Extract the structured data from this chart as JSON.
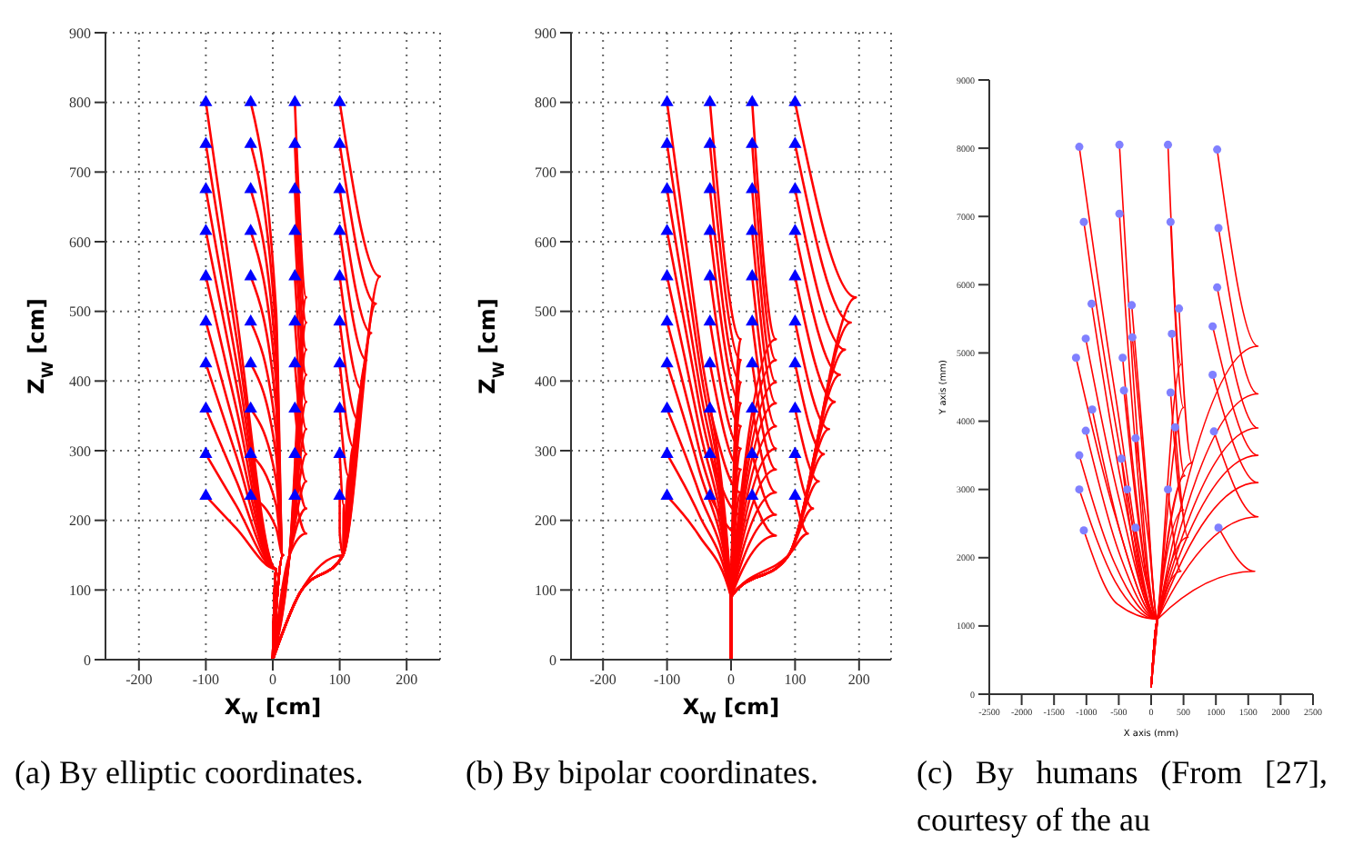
{
  "chart_data": [
    {
      "type": "line",
      "title": "(a) By elliptic coordinates.",
      "xlabel": "X$_{W}$ [cm]",
      "ylabel": "Z$_{W}$ [cm]",
      "xlim": [
        -250,
        250
      ],
      "xticks": [
        -200,
        -100,
        0,
        100,
        200
      ],
      "ylim": [
        0,
        900
      ],
      "yticks": [
        0,
        100,
        200,
        300,
        400,
        500,
        600,
        700,
        800,
        900
      ],
      "grid": true,
      "line_style": "solid",
      "marker": "none",
      "series": [
        {
          "color": "#ff0000",
          "x": [
            -100,
            -55,
            5,
            0
          ],
          "values": [
            800,
            500,
            130,
            0
          ]
        },
        {
          "color": "#ff0000",
          "x": [
            -100,
            -55,
            5,
            0
          ],
          "values": [
            740,
            467,
            130,
            0
          ]
        },
        {
          "color": "#ff0000",
          "x": [
            -100,
            -55,
            5,
            0
          ],
          "values": [
            675,
            431,
            130,
            0
          ]
        },
        {
          "color": "#ff0000",
          "x": [
            -100,
            -55,
            5,
            0
          ],
          "values": [
            615,
            398,
            130,
            0
          ]
        },
        {
          "color": "#ff0000",
          "x": [
            -100,
            -55,
            5,
            0
          ],
          "values": [
            550,
            363,
            130,
            0
          ]
        },
        {
          "color": "#ff0000",
          "x": [
            -100,
            -55,
            5,
            0
          ],
          "values": [
            485,
            327,
            130,
            0
          ]
        },
        {
          "color": "#ff0000",
          "x": [
            -100,
            -55,
            5,
            0
          ],
          "values": [
            425,
            294,
            130,
            0
          ]
        },
        {
          "color": "#ff0000",
          "x": [
            -100,
            -55,
            5,
            0
          ],
          "values": [
            360,
            258,
            130,
            0
          ]
        },
        {
          "color": "#ff0000",
          "x": [
            -100,
            -55,
            5,
            0
          ],
          "values": [
            295,
            222,
            130,
            0
          ]
        },
        {
          "color": "#ff0000",
          "x": [
            -100,
            -55,
            5,
            0
          ],
          "values": [
            235,
            189,
            130,
            0
          ]
        },
        {
          "color": "#ff0000",
          "x": [
            -33,
            5,
            15,
            0
          ],
          "values": [
            800,
            500,
            150,
            0
          ]
        },
        {
          "color": "#ff0000",
          "x": [
            -33,
            5,
            15,
            0
          ],
          "values": [
            740,
            467,
            150,
            0
          ]
        },
        {
          "color": "#ff0000",
          "x": [
            -33,
            5,
            15,
            0
          ],
          "values": [
            675,
            431,
            150,
            0
          ]
        },
        {
          "color": "#ff0000",
          "x": [
            -33,
            5,
            15,
            0
          ],
          "values": [
            615,
            398,
            150,
            0
          ]
        },
        {
          "color": "#ff0000",
          "x": [
            -33,
            5,
            15,
            0
          ],
          "values": [
            550,
            363,
            150,
            0
          ]
        },
        {
          "color": "#ff0000",
          "x": [
            -33,
            5,
            15,
            0
          ],
          "values": [
            485,
            327,
            150,
            0
          ]
        },
        {
          "color": "#ff0000",
          "x": [
            -33,
            5,
            15,
            0
          ],
          "values": [
            425,
            294,
            150,
            0
          ]
        },
        {
          "color": "#ff0000",
          "x": [
            -33,
            5,
            15,
            0
          ],
          "values": [
            360,
            258,
            150,
            0
          ]
        },
        {
          "color": "#ff0000",
          "x": [
            -33,
            5,
            15,
            0
          ],
          "values": [
            295,
            222,
            150,
            0
          ]
        },
        {
          "color": "#ff0000",
          "x": [
            -33,
            5,
            15,
            0
          ],
          "values": [
            235,
            189,
            150,
            0
          ]
        },
        {
          "color": "#ff0000",
          "x": [
            33,
            50,
            25,
            0
          ],
          "values": [
            800,
            520,
            150,
            0
          ]
        },
        {
          "color": "#ff0000",
          "x": [
            33,
            50,
            25,
            0
          ],
          "values": [
            740,
            484,
            150,
            0
          ]
        },
        {
          "color": "#ff0000",
          "x": [
            33,
            50,
            25,
            0
          ],
          "values": [
            675,
            445,
            150,
            0
          ]
        },
        {
          "color": "#ff0000",
          "x": [
            33,
            50,
            25,
            0
          ],
          "values": [
            615,
            409,
            150,
            0
          ]
        },
        {
          "color": "#ff0000",
          "x": [
            33,
            50,
            25,
            0
          ],
          "values": [
            550,
            370,
            150,
            0
          ]
        },
        {
          "color": "#ff0000",
          "x": [
            33,
            50,
            25,
            0
          ],
          "values": [
            485,
            331,
            150,
            0
          ]
        },
        {
          "color": "#ff0000",
          "x": [
            33,
            50,
            25,
            0
          ],
          "values": [
            425,
            295,
            150,
            0
          ]
        },
        {
          "color": "#ff0000",
          "x": [
            33,
            50,
            25,
            0
          ],
          "values": [
            360,
            256,
            150,
            0
          ]
        },
        {
          "color": "#ff0000",
          "x": [
            33,
            50,
            25,
            0
          ],
          "values": [
            295,
            217,
            150,
            0
          ]
        },
        {
          "color": "#ff0000",
          "x": [
            33,
            50,
            25,
            0
          ],
          "values": [
            235,
            181,
            150,
            0
          ]
        },
        {
          "color": "#ff0000",
          "x": [
            100,
            160,
            105,
            40,
            0
          ],
          "values": [
            800,
            550,
            150,
            95,
            0
          ]
        },
        {
          "color": "#ff0000",
          "x": [
            100,
            154,
            105,
            40,
            0
          ],
          "values": [
            740,
            511,
            150,
            95,
            0
          ]
        },
        {
          "color": "#ff0000",
          "x": [
            100,
            147,
            105,
            40,
            0
          ],
          "values": [
            675,
            469,
            150,
            95,
            0
          ]
        },
        {
          "color": "#ff0000",
          "x": [
            100,
            140,
            105,
            40,
            0
          ],
          "values": [
            615,
            430,
            150,
            95,
            0
          ]
        },
        {
          "color": "#ff0000",
          "x": [
            100,
            133,
            105,
            40,
            0
          ],
          "values": [
            550,
            388,
            150,
            95,
            0
          ]
        },
        {
          "color": "#ff0000",
          "x": [
            100,
            127,
            105,
            40,
            0
          ],
          "values": [
            485,
            345,
            150,
            95,
            0
          ]
        },
        {
          "color": "#ff0000",
          "x": [
            100,
            120,
            105,
            40,
            0
          ],
          "values": [
            425,
            306,
            150,
            95,
            0
          ]
        },
        {
          "color": "#ff0000",
          "x": [
            100,
            113,
            105,
            40,
            0
          ],
          "values": [
            360,
            264,
            150,
            95,
            0
          ]
        },
        {
          "color": "#ff0000",
          "x": [
            100,
            106,
            105,
            40,
            0
          ],
          "values": [
            295,
            222,
            150,
            95,
            0
          ]
        },
        {
          "color": "#ff0000",
          "x": [
            100,
            100,
            105,
            40,
            0
          ],
          "values": [
            235,
            183,
            150,
            95,
            0
          ]
        },
        {
          "type": "scatter",
          "color": "#0000ff",
          "marker": "triangle",
          "x": [
            -100,
            -100,
            -100,
            -100,
            -100,
            -100,
            -100,
            -100,
            -100,
            -100,
            -33,
            -33,
            -33,
            -33,
            -33,
            -33,
            -33,
            -33,
            -33,
            -33,
            33,
            33,
            33,
            33,
            33,
            33,
            33,
            33,
            33,
            33,
            100,
            100,
            100,
            100,
            100,
            100,
            100,
            100,
            100,
            100
          ],
          "values": [
            800,
            740,
            675,
            615,
            550,
            485,
            425,
            360,
            295,
            235,
            800,
            740,
            675,
            615,
            550,
            485,
            425,
            360,
            295,
            235,
            800,
            740,
            675,
            615,
            550,
            485,
            425,
            360,
            295,
            235,
            800,
            740,
            675,
            615,
            550,
            485,
            425,
            360,
            295,
            235
          ]
        }
      ]
    },
    {
      "type": "line",
      "title": "(b) By bipolar coordinates.",
      "xlabel": "X$_{W}$ [cm]",
      "ylabel": "Z$_{W}$ [cm]",
      "xlim": [
        -250,
        250
      ],
      "xticks": [
        -200,
        -100,
        0,
        100,
        200
      ],
      "ylim": [
        0,
        900
      ],
      "yticks": [
        0,
        100,
        200,
        300,
        400,
        500,
        600,
        700,
        800,
        900
      ],
      "grid": true,
      "line_style": "solid",
      "marker": "none",
      "series": [
        {
          "color": "#ff0000",
          "x": [
            -100,
            -50,
            0,
            0
          ],
          "values": [
            800,
            460,
            90,
            0
          ]
        },
        {
          "color": "#ff0000",
          "x": [
            -100,
            -50,
            0,
            0
          ],
          "values": [
            740,
            430,
            90,
            0
          ]
        },
        {
          "color": "#ff0000",
          "x": [
            -100,
            -50,
            0,
            0
          ],
          "values": [
            675,
            398,
            90,
            0
          ]
        },
        {
          "color": "#ff0000",
          "x": [
            -100,
            -50,
            0,
            0
          ],
          "values": [
            615,
            368,
            90,
            0
          ]
        },
        {
          "color": "#ff0000",
          "x": [
            -100,
            -50,
            0,
            0
          ],
          "values": [
            550,
            335,
            90,
            0
          ]
        },
        {
          "color": "#ff0000",
          "x": [
            -100,
            -50,
            0,
            0
          ],
          "values": [
            485,
            303,
            90,
            0
          ]
        },
        {
          "color": "#ff0000",
          "x": [
            -100,
            -50,
            0,
            0
          ],
          "values": [
            425,
            273,
            90,
            0
          ]
        },
        {
          "color": "#ff0000",
          "x": [
            -100,
            -50,
            0,
            0
          ],
          "values": [
            360,
            240,
            90,
            0
          ]
        },
        {
          "color": "#ff0000",
          "x": [
            -100,
            -50,
            0,
            0
          ],
          "values": [
            295,
            208,
            90,
            0
          ]
        },
        {
          "color": "#ff0000",
          "x": [
            -100,
            -50,
            0,
            0
          ],
          "values": [
            235,
            178,
            90,
            0
          ]
        },
        {
          "color": "#ff0000",
          "x": [
            -33,
            15,
            0,
            0
          ],
          "values": [
            800,
            460,
            90,
            0
          ]
        },
        {
          "color": "#ff0000",
          "x": [
            -33,
            15,
            0,
            0
          ],
          "values": [
            740,
            430,
            90,
            0
          ]
        },
        {
          "color": "#ff0000",
          "x": [
            -33,
            15,
            0,
            0
          ],
          "values": [
            675,
            398,
            90,
            0
          ]
        },
        {
          "color": "#ff0000",
          "x": [
            -33,
            15,
            0,
            0
          ],
          "values": [
            615,
            368,
            90,
            0
          ]
        },
        {
          "color": "#ff0000",
          "x": [
            -33,
            15,
            0,
            0
          ],
          "values": [
            550,
            335,
            90,
            0
          ]
        },
        {
          "color": "#ff0000",
          "x": [
            -33,
            15,
            0,
            0
          ],
          "values": [
            485,
            303,
            90,
            0
          ]
        },
        {
          "color": "#ff0000",
          "x": [
            -33,
            15,
            0,
            0
          ],
          "values": [
            425,
            273,
            90,
            0
          ]
        },
        {
          "color": "#ff0000",
          "x": [
            -33,
            15,
            0,
            0
          ],
          "values": [
            360,
            240,
            90,
            0
          ]
        },
        {
          "color": "#ff0000",
          "x": [
            -33,
            15,
            0,
            0
          ],
          "values": [
            295,
            208,
            90,
            0
          ]
        },
        {
          "color": "#ff0000",
          "x": [
            -33,
            15,
            0,
            0
          ],
          "values": [
            235,
            178,
            90,
            0
          ]
        },
        {
          "color": "#ff0000",
          "x": [
            33,
            70,
            0,
            0
          ],
          "values": [
            800,
            460,
            90,
            0
          ]
        },
        {
          "color": "#ff0000",
          "x": [
            33,
            70,
            0,
            0
          ],
          "values": [
            740,
            430,
            90,
            0
          ]
        },
        {
          "color": "#ff0000",
          "x": [
            33,
            70,
            0,
            0
          ],
          "values": [
            675,
            398,
            90,
            0
          ]
        },
        {
          "color": "#ff0000",
          "x": [
            33,
            70,
            0,
            0
          ],
          "values": [
            615,
            368,
            90,
            0
          ]
        },
        {
          "color": "#ff0000",
          "x": [
            33,
            70,
            0,
            0
          ],
          "values": [
            550,
            335,
            90,
            0
          ]
        },
        {
          "color": "#ff0000",
          "x": [
            33,
            70,
            0,
            0
          ],
          "values": [
            485,
            303,
            90,
            0
          ]
        },
        {
          "color": "#ff0000",
          "x": [
            33,
            70,
            0,
            0
          ],
          "values": [
            425,
            273,
            90,
            0
          ]
        },
        {
          "color": "#ff0000",
          "x": [
            33,
            70,
            0,
            0
          ],
          "values": [
            360,
            240,
            90,
            0
          ]
        },
        {
          "color": "#ff0000",
          "x": [
            33,
            70,
            0,
            0
          ],
          "values": [
            295,
            208,
            90,
            0
          ]
        },
        {
          "color": "#ff0000",
          "x": [
            33,
            70,
            0,
            0
          ],
          "values": [
            235,
            178,
            90,
            0
          ]
        },
        {
          "color": "#ff0000",
          "x": [
            100,
            195,
            90,
            0,
            0
          ],
          "values": [
            800,
            520,
            150,
            90,
            0
          ]
        },
        {
          "color": "#ff0000",
          "x": [
            100,
            187,
            90,
            0,
            0
          ],
          "values": [
            740,
            484,
            150,
            90,
            0
          ]
        },
        {
          "color": "#ff0000",
          "x": [
            100,
            178,
            90,
            0,
            0
          ],
          "values": [
            675,
            445,
            150,
            90,
            0
          ]
        },
        {
          "color": "#ff0000",
          "x": [
            100,
            170,
            90,
            0,
            0
          ],
          "values": [
            615,
            409,
            150,
            90,
            0
          ]
        },
        {
          "color": "#ff0000",
          "x": [
            100,
            162,
            90,
            0,
            0
          ],
          "values": [
            550,
            370,
            150,
            90,
            0
          ]
        },
        {
          "color": "#ff0000",
          "x": [
            100,
            153,
            90,
            0,
            0
          ],
          "values": [
            485,
            331,
            150,
            90,
            0
          ]
        },
        {
          "color": "#ff0000",
          "x": [
            100,
            145,
            90,
            0,
            0
          ],
          "values": [
            425,
            295,
            150,
            90,
            0
          ]
        },
        {
          "color": "#ff0000",
          "x": [
            100,
            137,
            90,
            0,
            0
          ],
          "values": [
            360,
            256,
            150,
            90,
            0
          ]
        },
        {
          "color": "#ff0000",
          "x": [
            100,
            128,
            90,
            0,
            0
          ],
          "values": [
            295,
            217,
            150,
            90,
            0
          ]
        },
        {
          "color": "#ff0000",
          "x": [
            100,
            120,
            90,
            0,
            0
          ],
          "values": [
            235,
            181,
            150,
            90,
            0
          ]
        },
        {
          "type": "scatter",
          "color": "#0000ff",
          "marker": "triangle",
          "x": [
            -100,
            -100,
            -100,
            -100,
            -100,
            -100,
            -100,
            -100,
            -100,
            -100,
            -33,
            -33,
            -33,
            -33,
            -33,
            -33,
            -33,
            -33,
            -33,
            -33,
            33,
            33,
            33,
            33,
            33,
            33,
            33,
            33,
            33,
            33,
            100,
            100,
            100,
            100,
            100,
            100,
            100,
            100,
            100,
            100
          ],
          "values": [
            800,
            740,
            675,
            615,
            550,
            485,
            425,
            360,
            295,
            235,
            800,
            740,
            675,
            615,
            550,
            485,
            425,
            360,
            295,
            235,
            800,
            740,
            675,
            615,
            550,
            485,
            425,
            360,
            295,
            235,
            800,
            740,
            675,
            615,
            550,
            485,
            425,
            360,
            295,
            235
          ]
        }
      ]
    },
    {
      "type": "line",
      "title": "(c) By humans (From [27], courtesy of the au",
      "xlabel": "X axis (mm)",
      "ylabel": "Y axis (mm)",
      "xlim": [
        -2500,
        2500
      ],
      "xticks": [
        -2500,
        -2000,
        -1500,
        -1000,
        -500,
        0,
        500,
        1000,
        1500,
        2000,
        2500
      ],
      "ylim": [
        0,
        9000
      ],
      "yticks": [
        0,
        1000,
        2000,
        3000,
        4000,
        5000,
        6000,
        7000,
        8000,
        9000
      ],
      "line_style": "solid",
      "marker": "none",
      "series": [
        {
          "color": "#ff0000",
          "x": [
            -1110,
            -555,
            100,
            0
          ],
          "values": [
            8020,
            4400,
            1100,
            100
          ]
        },
        {
          "color": "#ff0000",
          "x": [
            -490,
            -290,
            100,
            0
          ],
          "values": [
            8050,
            4830,
            1100,
            100
          ]
        },
        {
          "color": "#ff0000",
          "x": [
            260,
            460,
            100,
            0
          ],
          "values": [
            8050,
            4830,
            1100,
            100
          ]
        },
        {
          "color": "#ff0000",
          "x": [
            1020,
            1650,
            100,
            0
          ],
          "values": [
            7980,
            5100,
            1100,
            100
          ]
        },
        {
          "color": "#ff0000",
          "x": [
            -1040,
            -520,
            100,
            0
          ],
          "values": [
            6920,
            3800,
            1100,
            100
          ]
        },
        {
          "color": "#ff0000",
          "x": [
            -490,
            -290,
            100,
            0
          ],
          "values": [
            7040,
            4200,
            1100,
            100
          ]
        },
        {
          "color": "#ff0000",
          "x": [
            300,
            500,
            100,
            0
          ],
          "values": [
            6920,
            4200,
            1100,
            100
          ]
        },
        {
          "color": "#ff0000",
          "x": [
            1040,
            1650,
            100,
            0
          ],
          "values": [
            6830,
            4400,
            1100,
            100
          ]
        },
        {
          "color": "#ff0000",
          "x": [
            -920,
            -460,
            100,
            0
          ],
          "values": [
            5720,
            3100,
            1100,
            100
          ]
        },
        {
          "color": "#ff0000",
          "x": [
            -300,
            -100,
            100,
            0
          ],
          "values": [
            5700,
            3420,
            1100,
            100
          ]
        },
        {
          "color": "#ff0000",
          "x": [
            1020,
            1650,
            100,
            0
          ],
          "values": [
            5960,
            3900,
            1100,
            100
          ]
        },
        {
          "color": "#ff0000",
          "x": [
            430,
            630,
            100,
            0
          ],
          "values": [
            5650,
            3390,
            1100,
            100
          ]
        },
        {
          "color": "#ff0000",
          "x": [
            -1010,
            -505,
            100,
            0
          ],
          "values": [
            5210,
            2900,
            1100,
            100
          ]
        },
        {
          "color": "#ff0000",
          "x": [
            -290,
            -90,
            100,
            0
          ],
          "values": [
            5230,
            3100,
            1100,
            100
          ]
        },
        {
          "color": "#ff0000",
          "x": [
            320,
            520,
            100,
            0
          ],
          "values": [
            5280,
            3200,
            1100,
            100
          ]
        },
        {
          "color": "#ff0000",
          "x": [
            950,
            1650,
            100,
            0
          ],
          "values": [
            5390,
            3500,
            1100,
            100
          ]
        },
        {
          "color": "#ff0000",
          "x": [
            -1160,
            -580,
            100,
            0
          ],
          "values": [
            4930,
            2700,
            1100,
            100
          ]
        },
        {
          "color": "#ff0000",
          "x": [
            -440,
            -240,
            100,
            0
          ],
          "values": [
            4930,
            3000,
            1100,
            100
          ]
        },
        {
          "color": "#ff0000",
          "x": [
            -420,
            -220,
            100,
            0
          ],
          "values": [
            4450,
            2700,
            1100,
            100
          ]
        },
        {
          "color": "#ff0000",
          "x": [
            300,
            500,
            100,
            0
          ],
          "values": [
            4420,
            2700,
            1100,
            100
          ]
        },
        {
          "color": "#ff0000",
          "x": [
            950,
            1650,
            100,
            0
          ],
          "values": [
            4680,
            3100,
            1100,
            100
          ]
        },
        {
          "color": "#ff0000",
          "x": [
            -910,
            -455,
            100,
            0
          ],
          "values": [
            4170,
            2300,
            1100,
            100
          ]
        },
        {
          "color": "#ff0000",
          "x": [
            -1010,
            -505,
            100,
            0
          ],
          "values": [
            3860,
            2100,
            1100,
            100
          ]
        },
        {
          "color": "#ff0000",
          "x": [
            -240,
            -40,
            100,
            0
          ],
          "values": [
            3750,
            2250,
            1100,
            100
          ]
        },
        {
          "color": "#ff0000",
          "x": [
            370,
            570,
            100,
            0
          ],
          "values": [
            3910,
            2300,
            1100,
            100
          ]
        },
        {
          "color": "#ff0000",
          "x": [
            970,
            1650,
            100,
            0
          ],
          "values": [
            3850,
            2600,
            1100,
            100
          ]
        },
        {
          "color": "#ff0000",
          "x": [
            -1110,
            -555,
            100,
            0
          ],
          "values": [
            3500,
            1900,
            1100,
            100
          ]
        },
        {
          "color": "#ff0000",
          "x": [
            -460,
            -260,
            100,
            0
          ],
          "values": [
            3450,
            2070,
            1100,
            100
          ]
        },
        {
          "color": "#ff0000",
          "x": [
            -1110,
            -555,
            100,
            0
          ],
          "values": [
            3000,
            1650,
            1100,
            100
          ]
        },
        {
          "color": "#ff0000",
          "x": [
            -370,
            -170,
            100,
            0
          ],
          "values": [
            3000,
            1800,
            1100,
            100
          ]
        },
        {
          "color": "#ff0000",
          "x": [
            260,
            460,
            100,
            0
          ],
          "values": [
            3000,
            1800,
            1100,
            100
          ]
        },
        {
          "color": "#ff0000",
          "x": [
            -1040,
            -520,
            100,
            0
          ],
          "values": [
            2400,
            1320,
            1100,
            100
          ]
        },
        {
          "color": "#ff0000",
          "x": [
            -240,
            -40,
            100,
            0
          ],
          "values": [
            2440,
            1500,
            1100,
            100
          ]
        },
        {
          "color": "#ff0000",
          "x": [
            1040,
            1600,
            100,
            0
          ],
          "values": [
            2440,
            1800,
            1100,
            100
          ]
        },
        {
          "type": "scatter",
          "color": "#8080ff",
          "marker": "circle",
          "x": [
            -1110,
            -490,
            260,
            1020,
            -1040,
            -490,
            300,
            1040,
            -920,
            -300,
            1020,
            430,
            -1010,
            -290,
            320,
            950,
            -1160,
            -440,
            -420,
            300,
            950,
            -910,
            -1010,
            -240,
            370,
            970,
            -1110,
            -460,
            -1110,
            -370,
            260,
            -1040,
            -240,
            1040
          ],
          "values": [
            8020,
            8050,
            8050,
            7980,
            6920,
            7040,
            6920,
            6830,
            5720,
            5700,
            5960,
            5650,
            5210,
            5230,
            5280,
            5390,
            4930,
            4930,
            4450,
            4420,
            4680,
            4170,
            3860,
            3750,
            3910,
            3850,
            3500,
            3450,
            3000,
            3000,
            3000,
            2400,
            2440,
            2440
          ]
        }
      ]
    }
  ]
}
